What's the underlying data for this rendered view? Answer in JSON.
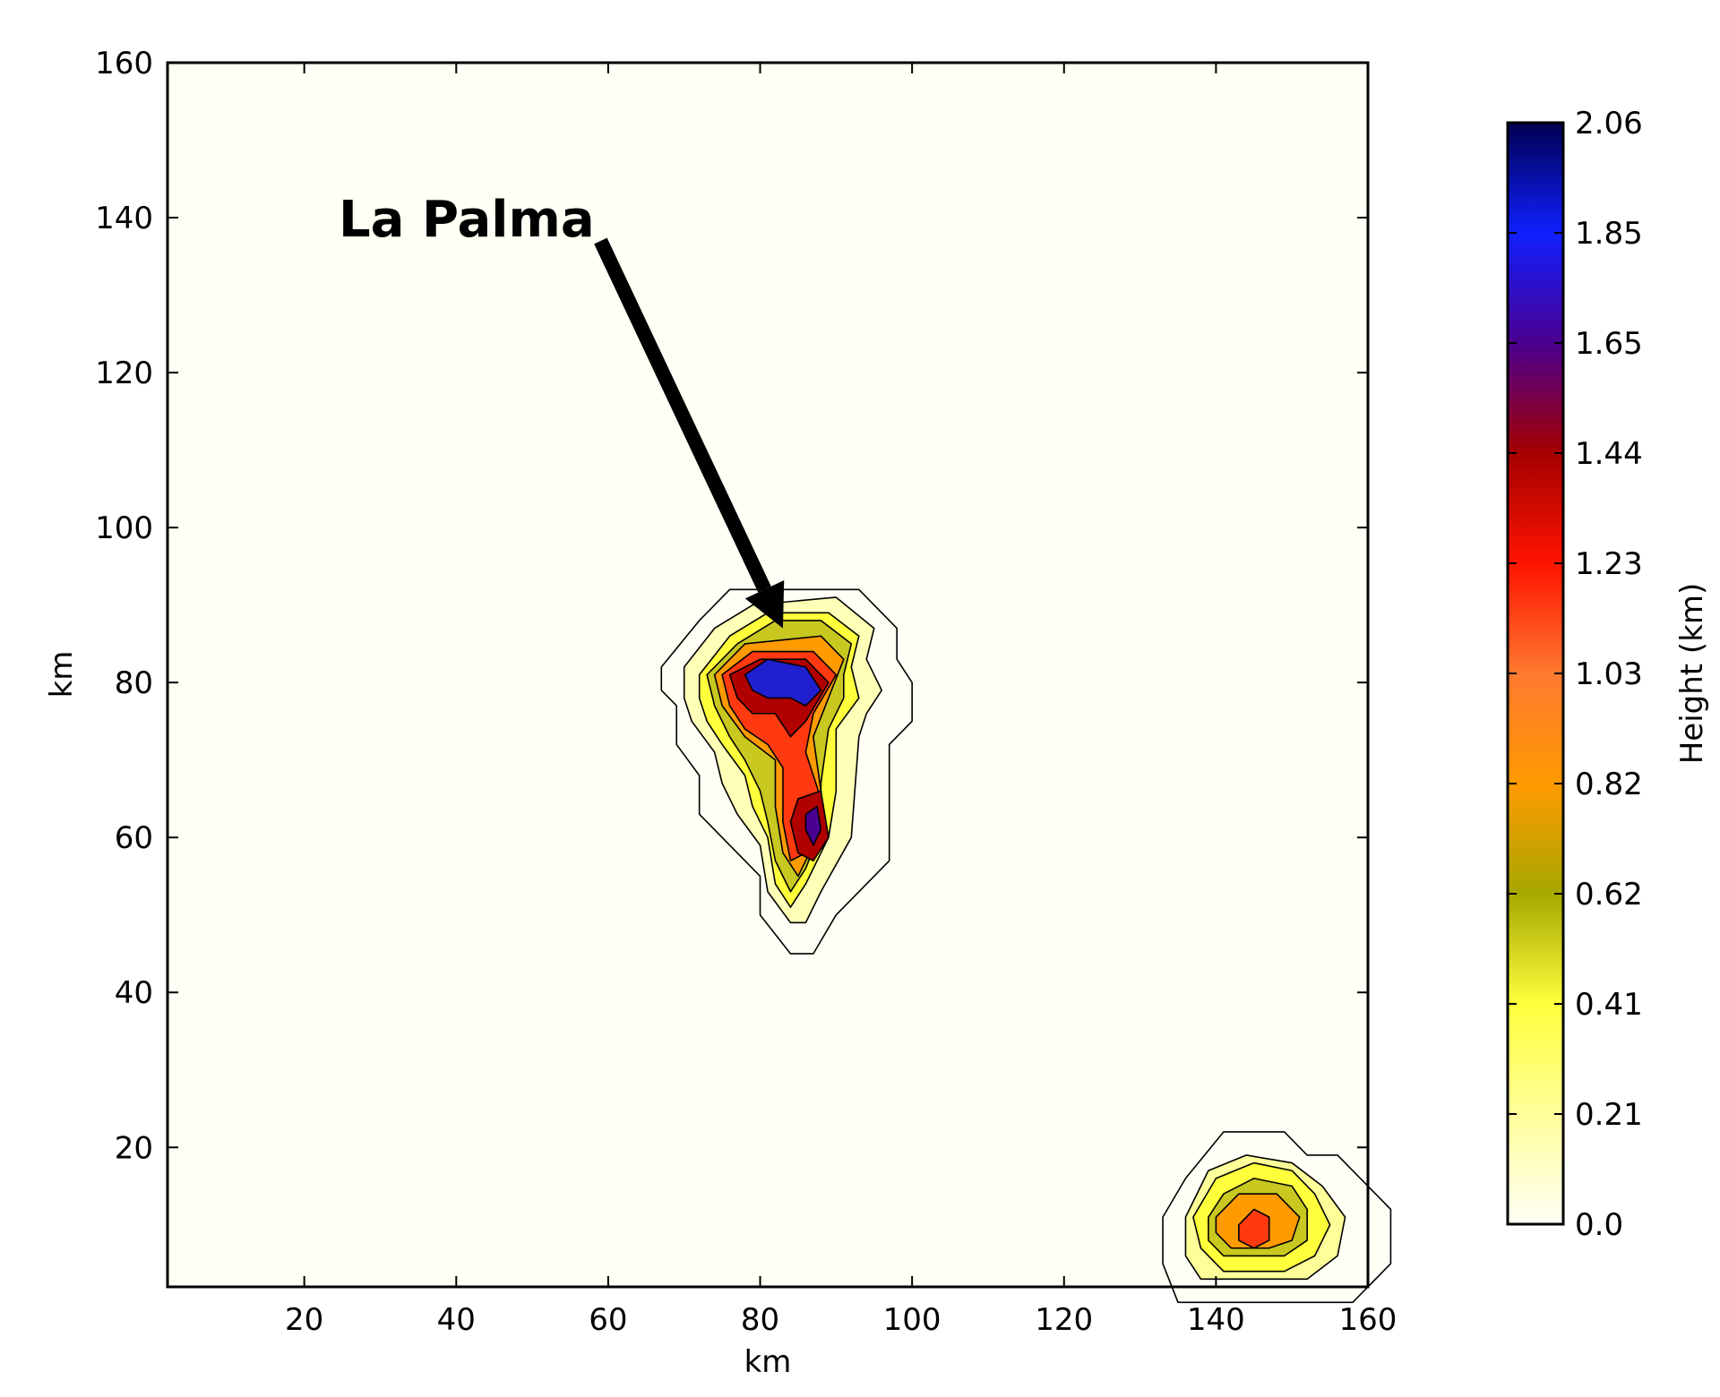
{
  "chart_data": {
    "type": "contour",
    "title": "",
    "xlabel": "km",
    "ylabel": "km",
    "xlim": [
      2,
      160
    ],
    "ylim": [
      2,
      160
    ],
    "xticks": [
      20,
      40,
      60,
      80,
      100,
      120,
      140,
      160
    ],
    "yticks": [
      20,
      40,
      60,
      80,
      100,
      120,
      140,
      160
    ],
    "colorbar": {
      "label": "Height (km)",
      "ticks": [
        "0.0",
        "0.21",
        "0.41",
        "0.62",
        "0.82",
        "1.03",
        "1.23",
        "1.44",
        "1.65",
        "1.85",
        "2.06"
      ],
      "range": [
        0.0,
        2.06
      ],
      "colors": [
        "#fffff5",
        "#ffff9a",
        "#ffff3c",
        "#a6a800",
        "#ff9a00",
        "#ff7a30",
        "#ff1400",
        "#a50000",
        "#4a0090",
        "#1020ff",
        "#000050"
      ]
    },
    "peaks": [
      {
        "x": 84,
        "y": 81,
        "height": 1.9
      },
      {
        "x": 87,
        "y": 62,
        "height": 1.55
      },
      {
        "x": 145,
        "y": 9,
        "height": 1.2
      }
    ],
    "annotation": {
      "text": "La Palma",
      "arrow_from": [
        59,
        137
      ],
      "arrow_to": [
        83,
        87
      ]
    }
  }
}
